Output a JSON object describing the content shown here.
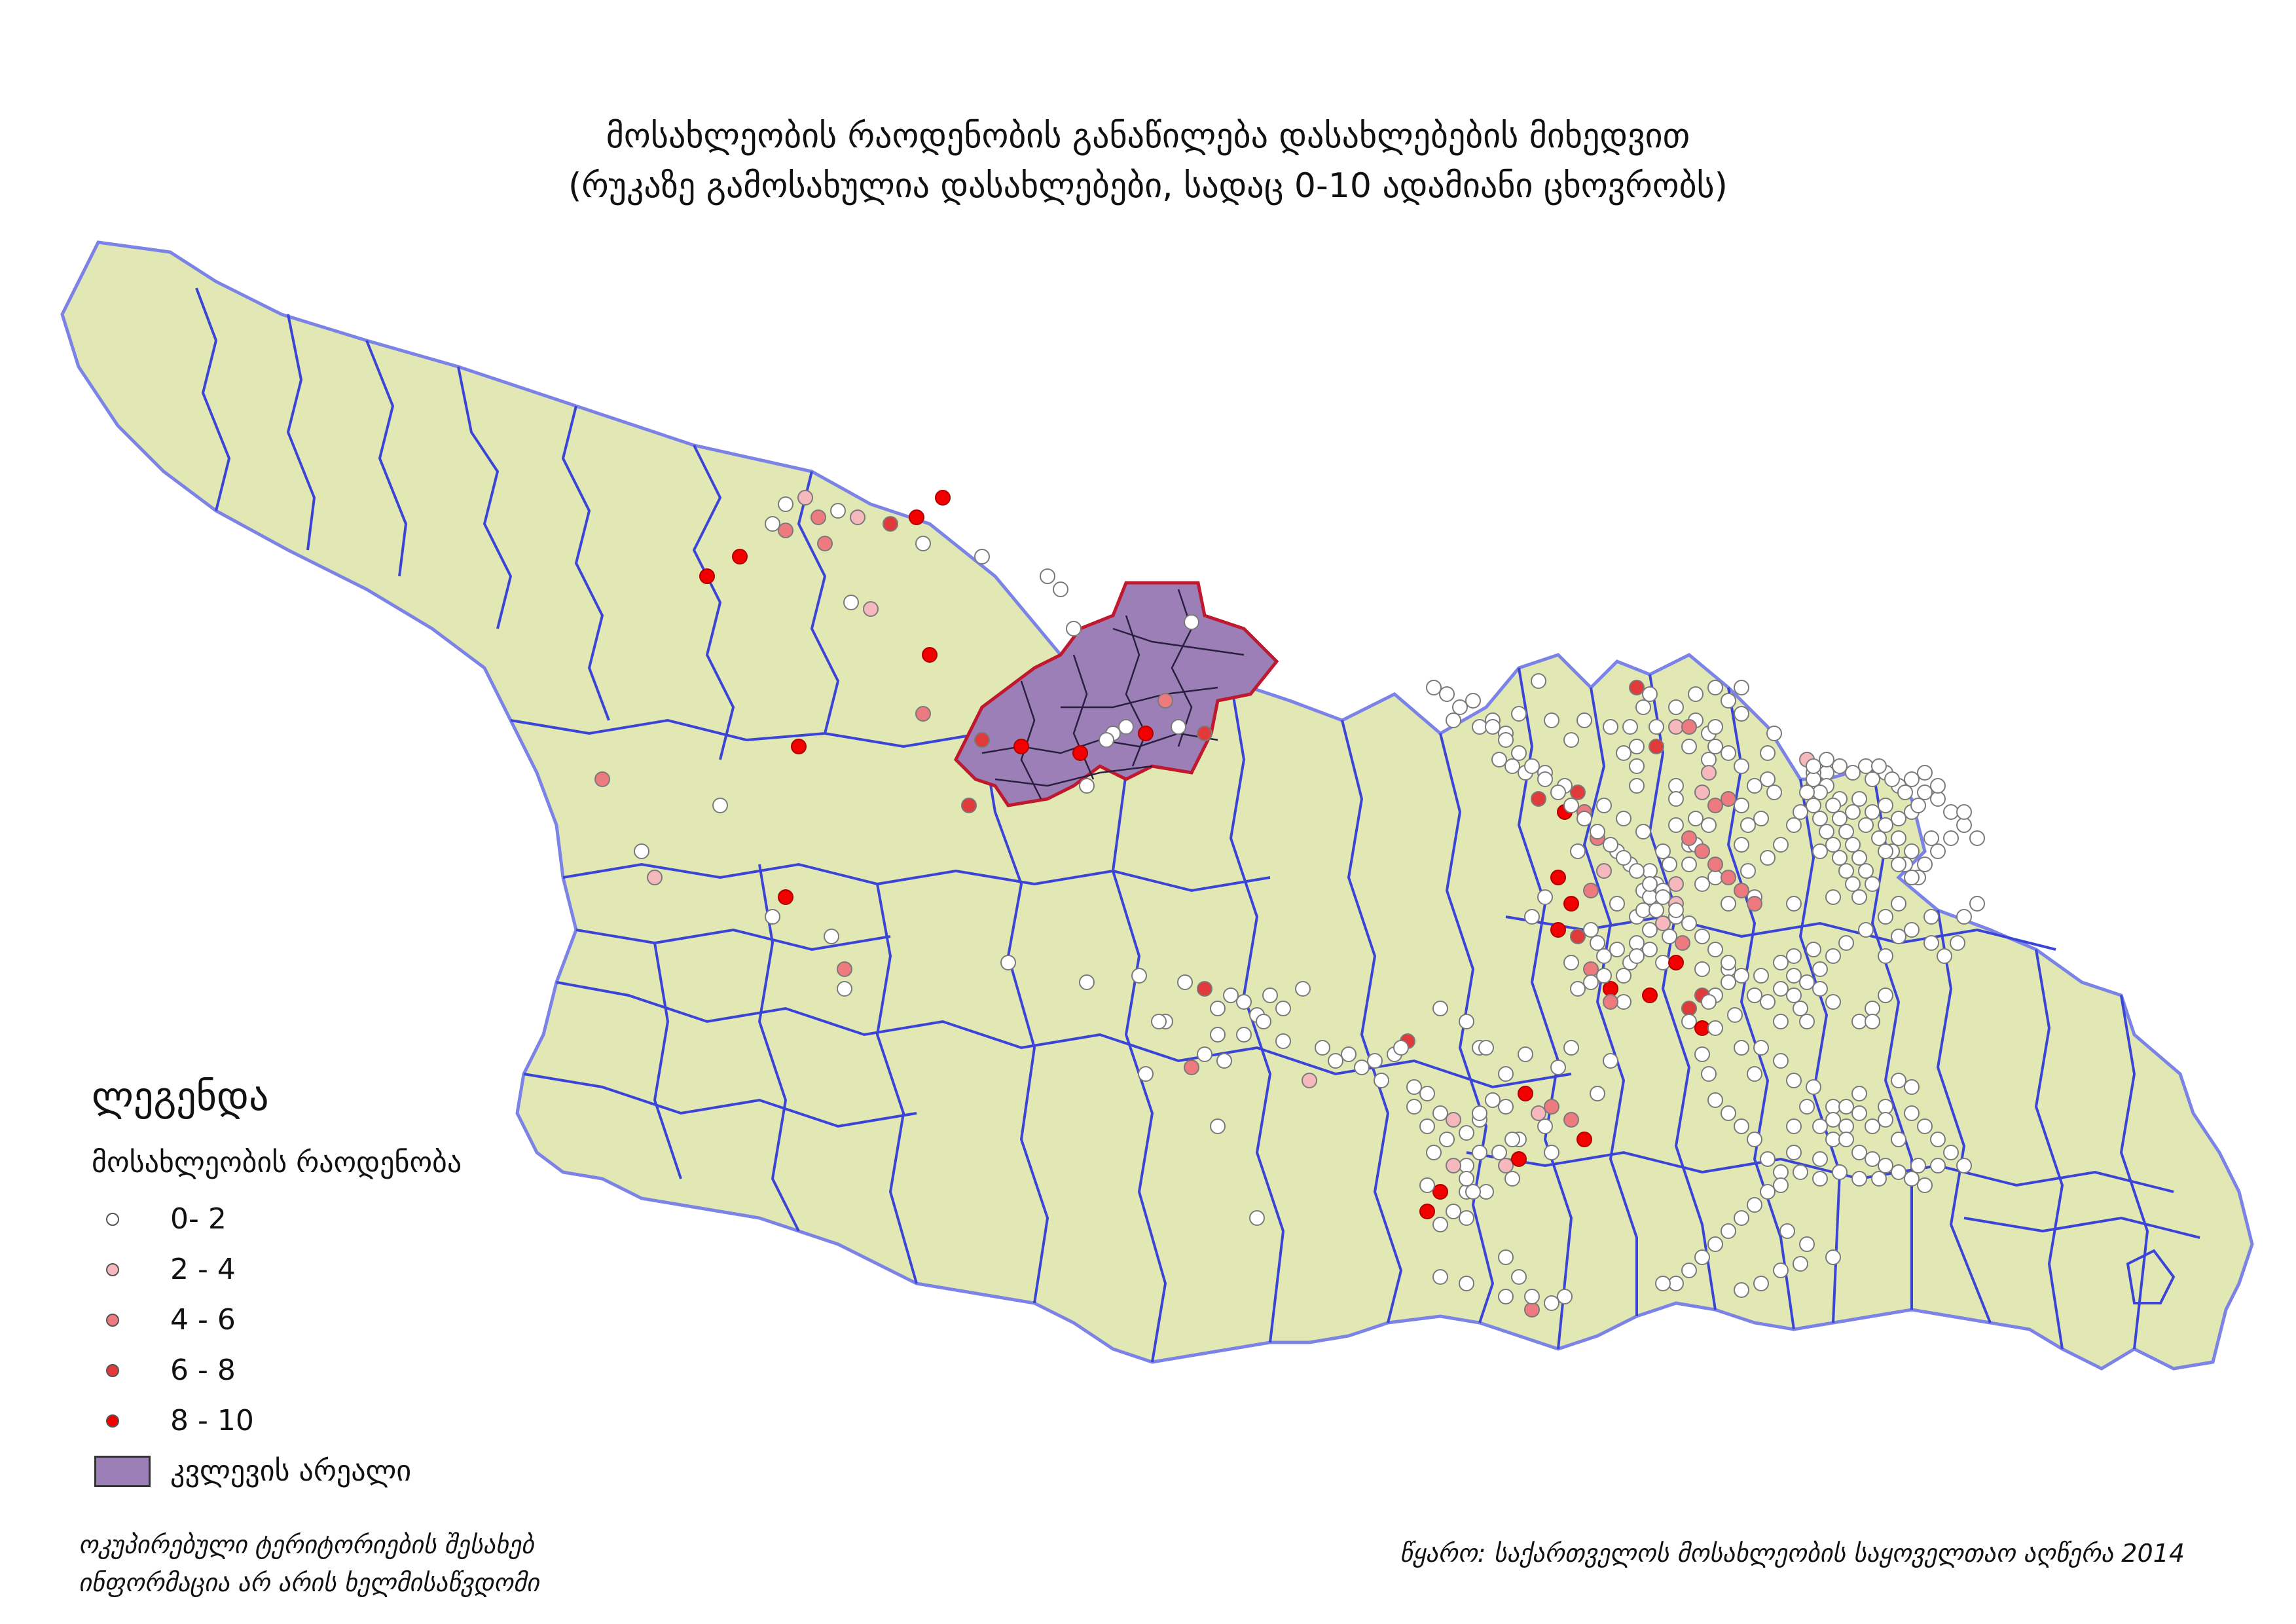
{
  "title": {
    "line1": "მოსახლეობის რაოდენობის განაწილება დასახლებების მიხედვით",
    "line2": "(რუკაზე გამოსახულია დასახლებები, სადაც 0-10 ადამიანი ცხოვრობს)"
  },
  "legend": {
    "heading": "ლეგენდა",
    "subheading": "მოსახლეობის რაოდენობა",
    "classes": [
      {
        "label": "0- 2",
        "color": "#ffffff"
      },
      {
        "label": "2 - 4",
        "color": "#f5b8bd"
      },
      {
        "label": "4 - 6",
        "color": "#ec7a7f"
      },
      {
        "label": "6 - 8",
        "color": "#e03a3a"
      },
      {
        "label": "8 - 10",
        "color": "#f20000"
      }
    ],
    "study_area_label": "კვლევის არეალი",
    "study_area_color": "#9b7fb6"
  },
  "colors": {
    "land_fill": "#e1e8b4",
    "district_border": "#3a45d8",
    "country_border": "#7b83e6",
    "study_area_border": "#c0182e"
  },
  "notes": {
    "occupied_line1": "ოკუპირებული ტერიტორიების შესახებ",
    "occupied_line2": "ინფორმაცია არ არის ხელმისაწვდომი",
    "source": "წყარო: საქართველოს მოსახლეობის საყოველთაო აღწერა 2014"
  }
}
